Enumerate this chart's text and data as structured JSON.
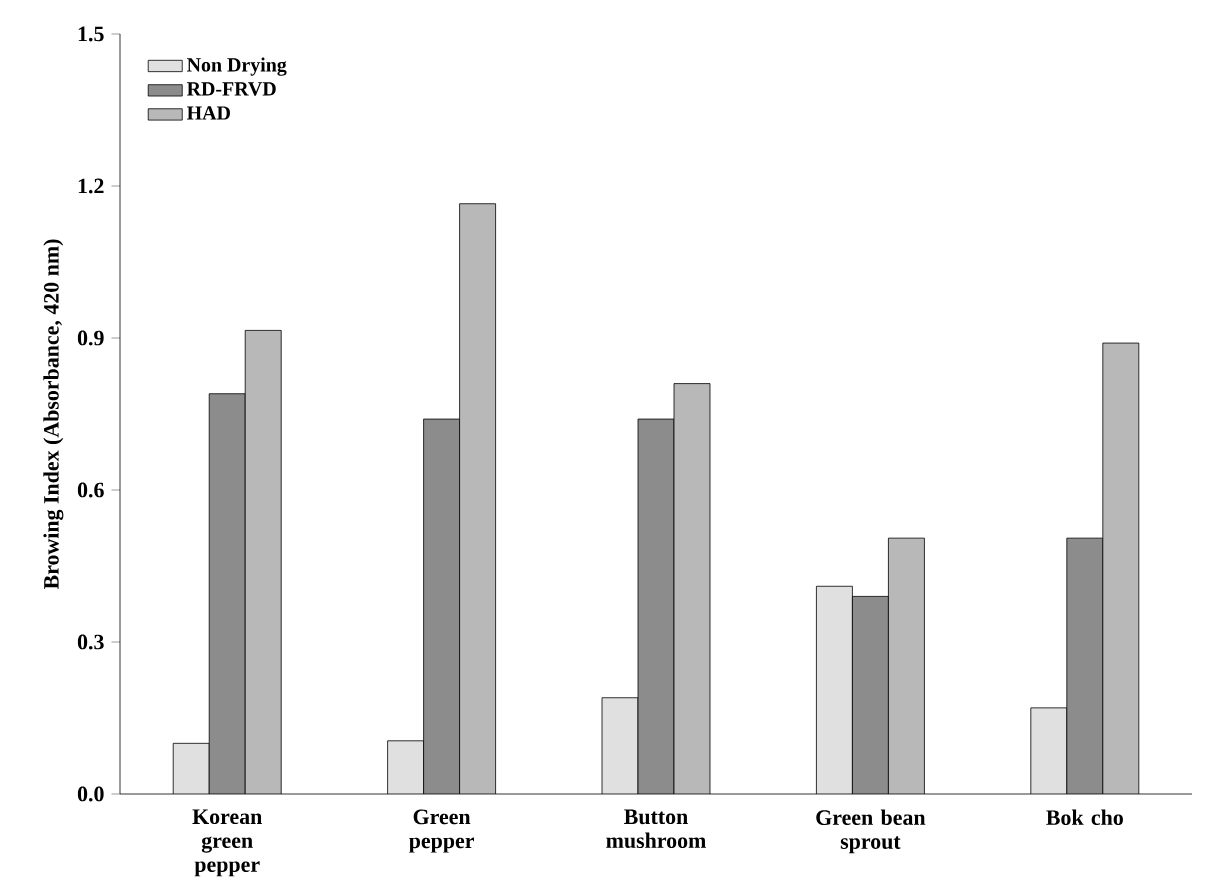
{
  "chart_data": {
    "type": "bar",
    "ylabel": "Browing Index (Absorbance, 420 nm)",
    "categories": [
      "Korean green pepper",
      "Green pepper",
      "Button mushroom",
      "Green bean sprout",
      "Bok cho"
    ],
    "series": [
      {
        "name": "Non Drying",
        "color": "#e0e0e0",
        "values": [
          0.1,
          0.105,
          0.19,
          0.41,
          0.17
        ]
      },
      {
        "name": "RD-FRVD",
        "color": "#8c8c8c",
        "values": [
          0.79,
          0.74,
          0.74,
          0.39,
          0.505
        ]
      },
      {
        "name": "HAD",
        "color": "#b8b8b8",
        "values": [
          0.915,
          1.165,
          0.81,
          0.505,
          0.89
        ]
      }
    ],
    "ylim": [
      0,
      1.5
    ],
    "yticks": [
      {
        "value": 0,
        "label": "0.0"
      },
      {
        "value": 0.3,
        "label": "0.3"
      },
      {
        "value": 0.6,
        "label": "0.6"
      },
      {
        "value": 0.9,
        "label": "0.9"
      },
      {
        "value": 1.2,
        "label": "1.2"
      },
      {
        "value": 1.5,
        "label": "1.5"
      }
    ],
    "grid": false,
    "legend": "top left"
  }
}
